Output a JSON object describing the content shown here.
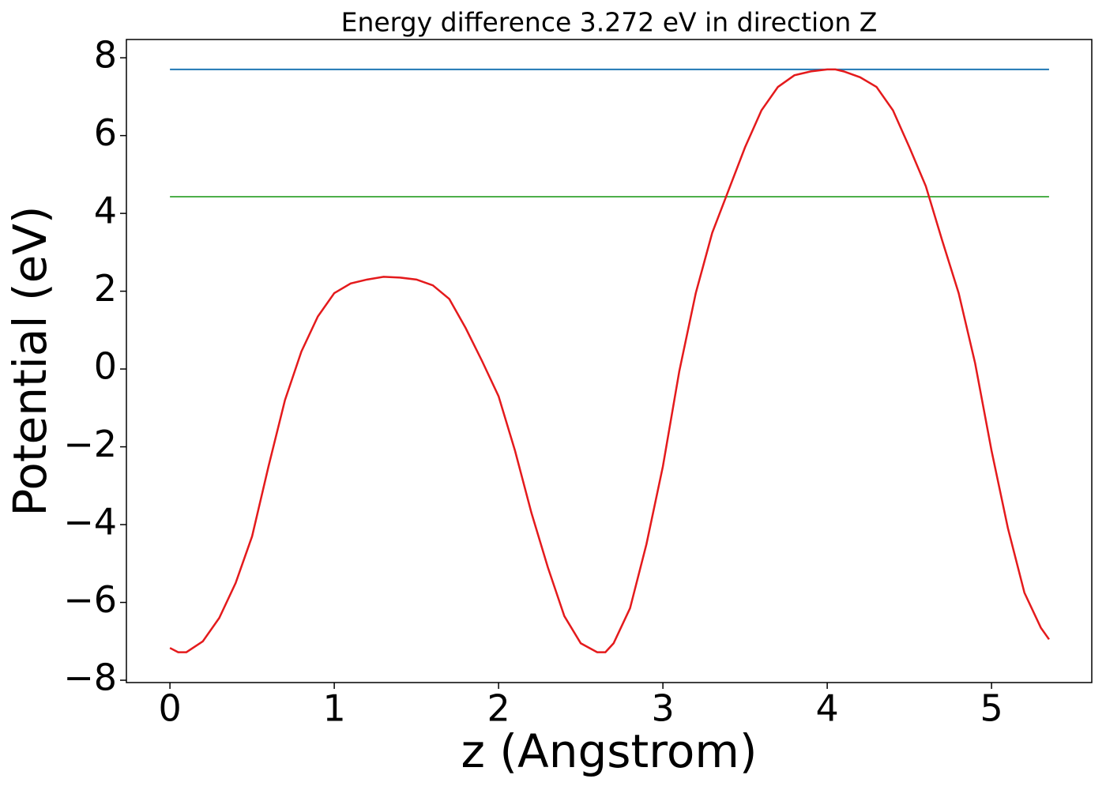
{
  "chart_data": {
    "type": "line",
    "title": "Energy difference 3.272 eV in direction Z",
    "xlabel": "z (Angstrom)",
    "ylabel": "Potential (eV)",
    "xlim": [
      -0.265,
      5.61
    ],
    "ylim": [
      -8.06,
      8.47
    ],
    "xticks": [
      0,
      1,
      2,
      3,
      4,
      5
    ],
    "yticks": [
      {
        "value": -8,
        "label": "−8"
      },
      {
        "value": -6,
        "label": "−6"
      },
      {
        "value": -4,
        "label": "−4"
      },
      {
        "value": -2,
        "label": "−2"
      },
      0,
      2,
      4,
      6,
      8
    ],
    "series": [
      {
        "color": "#e41a1c",
        "x": [
          0,
          0.05,
          0.1,
          0.2,
          0.3,
          0.4,
          0.5,
          0.6,
          0.7,
          0.8,
          0.9,
          1.0,
          1.1,
          1.2,
          1.3,
          1.4,
          1.5,
          1.6,
          1.7,
          1.8,
          1.9,
          2.0,
          2.1,
          2.2,
          2.3,
          2.4,
          2.5,
          2.6,
          2.65,
          2.7,
          2.8,
          2.9,
          3.0,
          3.1,
          3.2,
          3.3,
          3.4,
          3.5,
          3.6,
          3.7,
          3.8,
          3.9,
          4.0,
          4.05,
          4.1,
          4.2,
          4.3,
          4.4,
          4.5,
          4.6,
          4.7,
          4.8,
          4.9,
          5.0,
          5.1,
          5.2,
          5.3,
          5.35
        ],
        "values": [
          -7.17,
          -7.28,
          -7.28,
          -7.0,
          -6.4,
          -5.5,
          -4.3,
          -2.5,
          -0.8,
          0.45,
          1.35,
          1.95,
          2.2,
          2.3,
          2.37,
          2.35,
          2.3,
          2.15,
          1.8,
          1.05,
          0.2,
          -0.7,
          -2.1,
          -3.7,
          -5.1,
          -6.35,
          -7.05,
          -7.28,
          -7.28,
          -7.05,
          -6.15,
          -4.5,
          -2.5,
          -0.05,
          1.95,
          3.5,
          4.6,
          5.7,
          6.65,
          7.25,
          7.55,
          7.65,
          7.7,
          7.7,
          7.65,
          7.5,
          7.25,
          6.65,
          5.7,
          4.7,
          3.3,
          1.95,
          0.15,
          -2.1,
          -4.1,
          -5.75,
          -6.65,
          -6.95
        ]
      },
      {
        "color": "#1f77b4",
        "x": [
          0,
          5.35
        ],
        "values": [
          7.7,
          7.7
        ]
      },
      {
        "color": "#4daf4a",
        "x": [
          0,
          5.35
        ],
        "values": [
          4.43,
          4.43
        ]
      }
    ]
  }
}
